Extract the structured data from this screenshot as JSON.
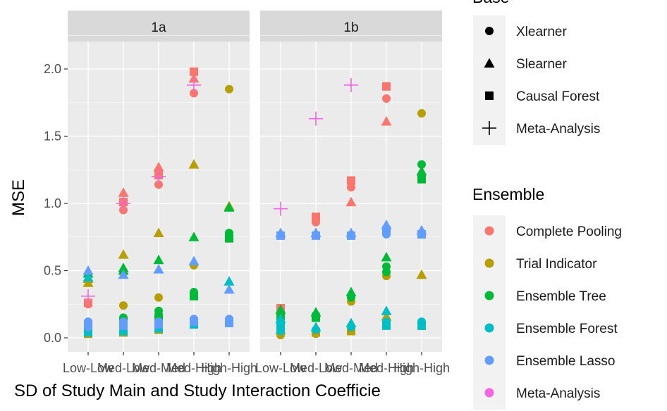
{
  "chart_data": {
    "type": "scatter",
    "facets": [
      {
        "label": "1a"
      },
      {
        "label": "1b"
      }
    ],
    "categories": [
      "Low-Low",
      "Med-Low",
      "Med-Med",
      "Med-High",
      "High-High"
    ],
    "xlabel": "SD of Study Main and Study Interaction Coefficie",
    "ylabel": "MSE",
    "ylim": [
      0,
      2.0
    ],
    "yticks": [
      "0.0",
      "0.5",
      "1.0",
      "1.5",
      "2.0"
    ],
    "grid": true,
    "legend_position": "right",
    "legends": {
      "base": {
        "title": "Base",
        "items": [
          {
            "name": "Xlearner",
            "shape": "circle"
          },
          {
            "name": "Slearner",
            "shape": "triangle"
          },
          {
            "name": "Causal Forest",
            "shape": "square"
          },
          {
            "name": "Meta-Analysis",
            "shape": "plus"
          }
        ]
      },
      "ensemble": {
        "title": "Ensemble",
        "items": [
          {
            "name": "Complete Pooling",
            "color": "#F8766D"
          },
          {
            "name": "Trial Indicator",
            "color": "#B79F00"
          },
          {
            "name": "Ensemble Tree",
            "color": "#00BA38"
          },
          {
            "name": "Ensemble Forest",
            "color": "#00BFC4"
          },
          {
            "name": "Ensemble Lasso",
            "color": "#619CFF"
          },
          {
            "name": "Meta-Analysis",
            "color": "#F564E3"
          }
        ]
      }
    },
    "points": {
      "1a": [
        {
          "c": 0,
          "s": "circle",
          "e": "Complete Pooling",
          "y": 0.25
        },
        {
          "c": 0,
          "s": "square",
          "e": "Complete Pooling",
          "y": 0.26
        },
        {
          "c": 0,
          "s": "triangle",
          "e": "Trial Indicator",
          "y": 0.41
        },
        {
          "c": 0,
          "s": "triangle",
          "e": "Trial Indicator",
          "y": 0.44
        },
        {
          "c": 0,
          "s": "square",
          "e": "Trial Indicator",
          "y": 0.03
        },
        {
          "c": 0,
          "s": "circle",
          "e": "Ensemble Tree",
          "y": 0.1
        },
        {
          "c": 0,
          "s": "square",
          "e": "Ensemble Tree",
          "y": 0.05
        },
        {
          "c": 0,
          "s": "triangle",
          "e": "Ensemble Tree",
          "y": 0.48
        },
        {
          "c": 0,
          "s": "circle",
          "e": "Ensemble Forest",
          "y": 0.06
        },
        {
          "c": 0,
          "s": "square",
          "e": "Ensemble Forest",
          "y": 0.04
        },
        {
          "c": 0,
          "s": "triangle",
          "e": "Ensemble Forest",
          "y": 0.45
        },
        {
          "c": 0,
          "s": "circle",
          "e": "Ensemble Lasso",
          "y": 0.12
        },
        {
          "c": 0,
          "s": "circle",
          "e": "Ensemble Lasso",
          "y": 0.08
        },
        {
          "c": 0,
          "s": "square",
          "e": "Ensemble Lasso",
          "y": 0.1
        },
        {
          "c": 0,
          "s": "triangle",
          "e": "Ensemble Lasso",
          "y": 0.5
        },
        {
          "c": 0,
          "s": "plus",
          "e": "Meta-Analysis",
          "y": 0.31
        },
        {
          "c": 1,
          "s": "triangle",
          "e": "Complete Pooling",
          "y": 1.08
        },
        {
          "c": 1,
          "s": "circle",
          "e": "Complete Pooling",
          "y": 0.95
        },
        {
          "c": 1,
          "s": "square",
          "e": "Complete Pooling",
          "y": 1.01
        },
        {
          "c": 1,
          "s": "triangle",
          "e": "Trial Indicator",
          "y": 0.62
        },
        {
          "c": 1,
          "s": "circle",
          "e": "Trial Indicator",
          "y": 0.24
        },
        {
          "c": 1,
          "s": "square",
          "e": "Trial Indicator",
          "y": 0.04
        },
        {
          "c": 1,
          "s": "triangle",
          "e": "Ensemble Tree",
          "y": 0.52
        },
        {
          "c": 1,
          "s": "triangle",
          "e": "Ensemble Tree",
          "y": 0.5
        },
        {
          "c": 1,
          "s": "circle",
          "e": "Ensemble Tree",
          "y": 0.15
        },
        {
          "c": 1,
          "s": "square",
          "e": "Ensemble Tree",
          "y": 0.12
        },
        {
          "c": 1,
          "s": "circle",
          "e": "Ensemble Forest",
          "y": 0.07
        },
        {
          "c": 1,
          "s": "square",
          "e": "Ensemble Forest",
          "y": 0.05
        },
        {
          "c": 1,
          "s": "triangle",
          "e": "Ensemble Lasso",
          "y": 0.47
        },
        {
          "c": 1,
          "s": "circle",
          "e": "Ensemble Lasso",
          "y": 0.12
        },
        {
          "c": 1,
          "s": "square",
          "e": "Ensemble Lasso",
          "y": 0.09
        },
        {
          "c": 1,
          "s": "plus",
          "e": "Meta-Analysis",
          "y": 1.0
        },
        {
          "c": 2,
          "s": "triangle",
          "e": "Complete Pooling",
          "y": 1.27
        },
        {
          "c": 2,
          "s": "square",
          "e": "Complete Pooling",
          "y": 1.21
        },
        {
          "c": 2,
          "s": "circle",
          "e": "Complete Pooling",
          "y": 1.14
        },
        {
          "c": 2,
          "s": "triangle",
          "e": "Trial Indicator",
          "y": 0.78
        },
        {
          "c": 2,
          "s": "circle",
          "e": "Trial Indicator",
          "y": 0.3
        },
        {
          "c": 2,
          "s": "square",
          "e": "Trial Indicator",
          "y": 0.06
        },
        {
          "c": 2,
          "s": "triangle",
          "e": "Ensemble Tree",
          "y": 0.58
        },
        {
          "c": 2,
          "s": "circle",
          "e": "Ensemble Tree",
          "y": 0.2
        },
        {
          "c": 2,
          "s": "circle",
          "e": "Ensemble Tree",
          "y": 0.17
        },
        {
          "c": 2,
          "s": "square",
          "e": "Ensemble Tree",
          "y": 0.15
        },
        {
          "c": 2,
          "s": "circle",
          "e": "Ensemble Forest",
          "y": 0.08
        },
        {
          "c": 2,
          "s": "square",
          "e": "Ensemble Forest",
          "y": 0.07
        },
        {
          "c": 2,
          "s": "triangle",
          "e": "Ensemble Lasso",
          "y": 0.51
        },
        {
          "c": 2,
          "s": "circle",
          "e": "Ensemble Lasso",
          "y": 0.12
        },
        {
          "c": 2,
          "s": "square",
          "e": "Ensemble Lasso",
          "y": 0.1
        },
        {
          "c": 2,
          "s": "plus",
          "e": "Meta-Analysis",
          "y": 1.2
        },
        {
          "c": 3,
          "s": "square",
          "e": "Complete Pooling",
          "y": 1.98
        },
        {
          "c": 3,
          "s": "triangle",
          "e": "Complete Pooling",
          "y": 1.93
        },
        {
          "c": 3,
          "s": "circle",
          "e": "Complete Pooling",
          "y": 1.82
        },
        {
          "c": 3,
          "s": "triangle",
          "e": "Trial Indicator",
          "y": 1.29
        },
        {
          "c": 3,
          "s": "circle",
          "e": "Trial Indicator",
          "y": 0.54
        },
        {
          "c": 3,
          "s": "triangle",
          "e": "Ensemble Tree",
          "y": 0.75
        },
        {
          "c": 3,
          "s": "circle",
          "e": "Ensemble Tree",
          "y": 0.34
        },
        {
          "c": 3,
          "s": "square",
          "e": "Ensemble Tree",
          "y": 0.31
        },
        {
          "c": 3,
          "s": "circle",
          "e": "Ensemble Forest",
          "y": 0.12
        },
        {
          "c": 3,
          "s": "square",
          "e": "Ensemble Forest",
          "y": 0.1
        },
        {
          "c": 3,
          "s": "triangle",
          "e": "Ensemble Lasso",
          "y": 0.57
        },
        {
          "c": 3,
          "s": "circle",
          "e": "Ensemble Lasso",
          "y": 0.14
        },
        {
          "c": 3,
          "s": "square",
          "e": "Ensemble Lasso",
          "y": 0.12
        },
        {
          "c": 3,
          "s": "plus",
          "e": "Meta-Analysis",
          "y": 1.88
        },
        {
          "c": 4,
          "s": "circle",
          "e": "Trial Indicator",
          "y": 1.85
        },
        {
          "c": 4,
          "s": "triangle",
          "e": "Trial Indicator",
          "y": 0.98
        },
        {
          "c": 4,
          "s": "square",
          "e": "Trial Indicator",
          "y": 0.11
        },
        {
          "c": 4,
          "s": "triangle",
          "e": "Ensemble Tree",
          "y": 0.97
        },
        {
          "c": 4,
          "s": "circle",
          "e": "Ensemble Tree",
          "y": 0.78
        },
        {
          "c": 4,
          "s": "square",
          "e": "Ensemble Tree",
          "y": 0.74
        },
        {
          "c": 4,
          "s": "triangle",
          "e": "Ensemble Forest",
          "y": 0.42
        },
        {
          "c": 4,
          "s": "circle",
          "e": "Ensemble Forest",
          "y": 0.12
        },
        {
          "c": 4,
          "s": "triangle",
          "e": "Ensemble Lasso",
          "y": 0.36
        },
        {
          "c": 4,
          "s": "circle",
          "e": "Ensemble Lasso",
          "y": 0.14
        },
        {
          "c": 4,
          "s": "square",
          "e": "Ensemble Lasso",
          "y": 0.11
        }
      ],
      "1b": [
        {
          "c": 0,
          "s": "square",
          "e": "Complete Pooling",
          "y": 0.22
        },
        {
          "c": 0,
          "s": "circle",
          "e": "Complete Pooling",
          "y": 0.2
        },
        {
          "c": 0,
          "s": "triangle",
          "e": "Trial Indicator",
          "y": 0.06
        },
        {
          "c": 0,
          "s": "circle",
          "e": "Trial Indicator",
          "y": 0.02
        },
        {
          "c": 0,
          "s": "triangle",
          "e": "Ensemble Tree",
          "y": 0.21
        },
        {
          "c": 0,
          "s": "circle",
          "e": "Ensemble Tree",
          "y": 0.18
        },
        {
          "c": 0,
          "s": "square",
          "e": "Ensemble Tree",
          "y": 0.16
        },
        {
          "c": 0,
          "s": "triangle",
          "e": "Ensemble Forest",
          "y": 0.14
        },
        {
          "c": 0,
          "s": "circle",
          "e": "Ensemble Forest",
          "y": 0.12
        },
        {
          "c": 0,
          "s": "square",
          "e": "Ensemble Forest",
          "y": 0.08
        },
        {
          "c": 0,
          "s": "circle",
          "e": "Ensemble Forest",
          "y": 0.05
        },
        {
          "c": 0,
          "s": "triangle",
          "e": "Ensemble Lasso",
          "y": 0.78
        },
        {
          "c": 0,
          "s": "square",
          "e": "Ensemble Lasso",
          "y": 0.76
        },
        {
          "c": 0,
          "s": "plus",
          "e": "Meta-Analysis",
          "y": 0.96
        },
        {
          "c": 1,
          "s": "square",
          "e": "Complete Pooling",
          "y": 0.9
        },
        {
          "c": 1,
          "s": "circle",
          "e": "Complete Pooling",
          "y": 0.86
        },
        {
          "c": 1,
          "s": "triangle",
          "e": "Complete Pooling",
          "y": 0.78
        },
        {
          "c": 1,
          "s": "square",
          "e": "Trial Indicator",
          "y": 0.04
        },
        {
          "c": 1,
          "s": "circle",
          "e": "Trial Indicator",
          "y": 0.03
        },
        {
          "c": 1,
          "s": "triangle",
          "e": "Ensemble Tree",
          "y": 0.19
        },
        {
          "c": 1,
          "s": "circle",
          "e": "Ensemble Tree",
          "y": 0.17
        },
        {
          "c": 1,
          "s": "square",
          "e": "Ensemble Tree",
          "y": 0.15
        },
        {
          "c": 1,
          "s": "triangle",
          "e": "Ensemble Forest",
          "y": 0.08
        },
        {
          "c": 1,
          "s": "circle",
          "e": "Ensemble Forest",
          "y": 0.06
        },
        {
          "c": 1,
          "s": "triangle",
          "e": "Ensemble Lasso",
          "y": 0.78
        },
        {
          "c": 1,
          "s": "square",
          "e": "Ensemble Lasso",
          "y": 0.76
        },
        {
          "c": 1,
          "s": "plus",
          "e": "Meta-Analysis",
          "y": 1.63
        },
        {
          "c": 2,
          "s": "square",
          "e": "Complete Pooling",
          "y": 1.17
        },
        {
          "c": 2,
          "s": "circle",
          "e": "Complete Pooling",
          "y": 1.12
        },
        {
          "c": 2,
          "s": "triangle",
          "e": "Complete Pooling",
          "y": 1.01
        },
        {
          "c": 2,
          "s": "circle",
          "e": "Trial Indicator",
          "y": 0.27
        },
        {
          "c": 2,
          "s": "square",
          "e": "Trial Indicator",
          "y": 0.05
        },
        {
          "c": 2,
          "s": "triangle",
          "e": "Ensemble Tree",
          "y": 0.34
        },
        {
          "c": 2,
          "s": "circle",
          "e": "Ensemble Tree",
          "y": 0.3
        },
        {
          "c": 2,
          "s": "triangle",
          "e": "Ensemble Forest",
          "y": 0.11
        },
        {
          "c": 2,
          "s": "circle",
          "e": "Ensemble Forest",
          "y": 0.08
        },
        {
          "c": 2,
          "s": "triangle",
          "e": "Ensemble Lasso",
          "y": 0.78
        },
        {
          "c": 2,
          "s": "square",
          "e": "Ensemble Lasso",
          "y": 0.76
        },
        {
          "c": 2,
          "s": "plus",
          "e": "Meta-Analysis",
          "y": 1.88
        },
        {
          "c": 3,
          "s": "square",
          "e": "Complete Pooling",
          "y": 1.87
        },
        {
          "c": 3,
          "s": "circle",
          "e": "Complete Pooling",
          "y": 1.78
        },
        {
          "c": 3,
          "s": "triangle",
          "e": "Complete Pooling",
          "y": 1.61
        },
        {
          "c": 3,
          "s": "circle",
          "e": "Trial Indicator",
          "y": 0.46
        },
        {
          "c": 3,
          "s": "triangle",
          "e": "Trial Indicator",
          "y": 0.16
        },
        {
          "c": 3,
          "s": "triangle",
          "e": "Ensemble Tree",
          "y": 0.6
        },
        {
          "c": 3,
          "s": "circle",
          "e": "Ensemble Tree",
          "y": 0.53
        },
        {
          "c": 3,
          "s": "circle",
          "e": "Ensemble Tree",
          "y": 0.49
        },
        {
          "c": 3,
          "s": "triangle",
          "e": "Ensemble Forest",
          "y": 0.2
        },
        {
          "c": 3,
          "s": "circle",
          "e": "Ensemble Forest",
          "y": 0.12
        },
        {
          "c": 3,
          "s": "square",
          "e": "Ensemble Forest",
          "y": 0.09
        },
        {
          "c": 3,
          "s": "triangle",
          "e": "Ensemble Lasso",
          "y": 0.84
        },
        {
          "c": 3,
          "s": "square",
          "e": "Ensemble Lasso",
          "y": 0.8
        },
        {
          "c": 3,
          "s": "circle",
          "e": "Ensemble Lasso",
          "y": 0.77
        },
        {
          "c": 4,
          "s": "circle",
          "e": "Trial Indicator",
          "y": 1.67
        },
        {
          "c": 4,
          "s": "triangle",
          "e": "Trial Indicator",
          "y": 0.47
        },
        {
          "c": 4,
          "s": "square",
          "e": "Trial Indicator",
          "y": 0.09
        },
        {
          "c": 4,
          "s": "circle",
          "e": "Ensemble Tree",
          "y": 1.29
        },
        {
          "c": 4,
          "s": "triangle",
          "e": "Ensemble Tree",
          "y": 1.24
        },
        {
          "c": 4,
          "s": "square",
          "e": "Ensemble Tree",
          "y": 1.18
        },
        {
          "c": 4,
          "s": "circle",
          "e": "Ensemble Forest",
          "y": 0.12
        },
        {
          "c": 4,
          "s": "square",
          "e": "Ensemble Forest",
          "y": 0.09
        },
        {
          "c": 4,
          "s": "triangle",
          "e": "Ensemble Lasso",
          "y": 0.8
        },
        {
          "c": 4,
          "s": "square",
          "e": "Ensemble Lasso",
          "y": 0.77
        }
      ]
    }
  }
}
